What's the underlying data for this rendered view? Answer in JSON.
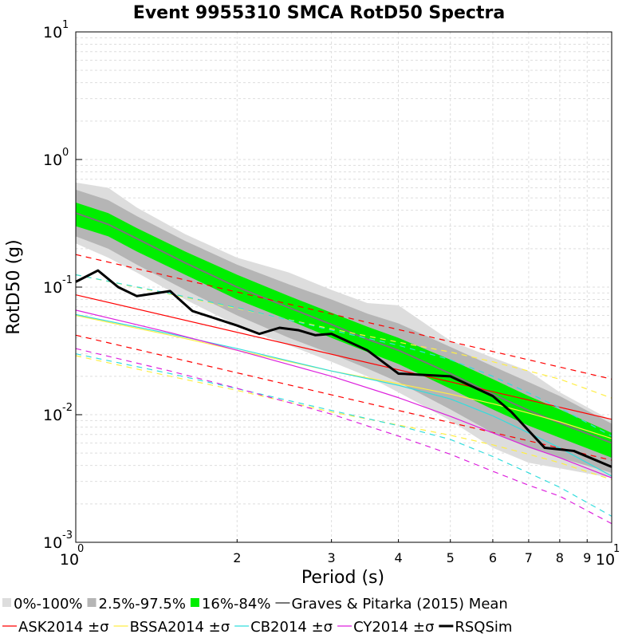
{
  "chart_data": {
    "type": "line",
    "title": "Event 9955310 SMCA RotD50 Spectra",
    "xlabel": "Period (s)",
    "ylabel": "RotD50 (g)",
    "xscale": "log",
    "yscale": "log",
    "xlim": [
      1,
      10
    ],
    "ylim": [
      0.001,
      10
    ],
    "grid": true,
    "legend_placement": "bottom",
    "x_ticks_major": [
      {
        "base": "10",
        "exp": "0",
        "value": 1
      },
      {
        "base": "10",
        "exp": "1",
        "value": 10
      }
    ],
    "x_ticks_minor": [
      {
        "label": "2",
        "value": 2
      },
      {
        "label": "3",
        "value": 3
      },
      {
        "label": "4",
        "value": 4
      },
      {
        "label": "5",
        "value": 5
      },
      {
        "label": "6",
        "value": 6
      },
      {
        "label": "7",
        "value": 7
      },
      {
        "label": "8",
        "value": 8
      },
      {
        "label": "9",
        "value": 9
      }
    ],
    "y_ticks": [
      {
        "base": "10",
        "exp": "-3",
        "value": 0.001
      },
      {
        "base": "10",
        "exp": "-2",
        "value": 0.01
      },
      {
        "base": "10",
        "exp": "-1",
        "value": 0.1
      },
      {
        "base": "10",
        "exp": "0",
        "value": 1
      },
      {
        "base": "10",
        "exp": "1",
        "value": 10
      }
    ],
    "bands": [
      {
        "name": "0%-100%",
        "color": "#dddddd",
        "x": [
          1,
          1.15,
          1.3,
          1.6,
          2,
          2.5,
          3,
          3.5,
          4,
          5,
          6,
          7,
          8,
          10
        ],
        "lower": [
          0.22,
          0.17,
          0.13,
          0.08,
          0.05,
          0.035,
          0.026,
          0.02,
          0.015,
          0.009,
          0.0055,
          0.0042,
          0.0038,
          0.0032
        ],
        "upper": [
          0.66,
          0.6,
          0.42,
          0.26,
          0.17,
          0.13,
          0.095,
          0.075,
          0.072,
          0.038,
          0.028,
          0.022,
          0.015,
          0.009
        ]
      },
      {
        "name": "2.5%-97.5%",
        "color": "#b5b5b5",
        "x": [
          1,
          1.15,
          1.3,
          1.6,
          2,
          2.5,
          3,
          3.5,
          4,
          5,
          6,
          7,
          8,
          10
        ],
        "lower": [
          0.25,
          0.2,
          0.15,
          0.095,
          0.06,
          0.04,
          0.03,
          0.023,
          0.018,
          0.011,
          0.0072,
          0.0055,
          0.0046,
          0.0035
        ],
        "upper": [
          0.58,
          0.48,
          0.36,
          0.23,
          0.15,
          0.105,
          0.08,
          0.062,
          0.052,
          0.034,
          0.024,
          0.018,
          0.014,
          0.0085
        ]
      },
      {
        "name": "16%-84%",
        "color": "#00ee00",
        "x": [
          1,
          1.15,
          1.3,
          1.6,
          2,
          2.5,
          3,
          3.5,
          4,
          5,
          6,
          7,
          8,
          10
        ],
        "lower": [
          0.3,
          0.25,
          0.19,
          0.125,
          0.08,
          0.055,
          0.04,
          0.031,
          0.025,
          0.016,
          0.011,
          0.0082,
          0.0066,
          0.0046
        ],
        "upper": [
          0.46,
          0.38,
          0.29,
          0.19,
          0.125,
          0.085,
          0.063,
          0.049,
          0.04,
          0.027,
          0.019,
          0.014,
          0.011,
          0.0072
        ]
      }
    ],
    "series": [
      {
        "name": "Graves & Pitarka (2015) Mean",
        "color": "#777777",
        "width": 2,
        "dash": false,
        "x": [
          1,
          1.15,
          1.3,
          1.6,
          2,
          2.5,
          3,
          3.5,
          4,
          5,
          6,
          7,
          8,
          10
        ],
        "y": [
          0.38,
          0.31,
          0.24,
          0.155,
          0.1,
          0.069,
          0.051,
          0.039,
          0.032,
          0.021,
          0.0145,
          0.0108,
          0.0086,
          0.006
        ]
      },
      {
        "name": "ASK2014 ±σ",
        "color": "#ff0000",
        "width": 1.2,
        "dash": false,
        "x": [
          1,
          10
        ],
        "y": [
          0.087,
          0.0092
        ]
      },
      {
        "name": "",
        "color": "#ff0000",
        "width": 1.2,
        "dash": true,
        "x": [
          1,
          10
        ],
        "y": [
          0.18,
          0.019
        ]
      },
      {
        "name": "",
        "color": "#ff0000",
        "width": 1.2,
        "dash": true,
        "x": [
          1,
          10
        ],
        "y": [
          0.042,
          0.0044
        ]
      },
      {
        "name": "BSSA2014 ±σ",
        "color": "#ffee44",
        "width": 1.2,
        "dash": false,
        "x": [
          1,
          1.5,
          2,
          3,
          4,
          5,
          6,
          7,
          8,
          10
        ],
        "y": [
          0.06,
          0.042,
          0.032,
          0.022,
          0.0175,
          0.0145,
          0.0122,
          0.0103,
          0.0088,
          0.0065
        ]
      },
      {
        "name": "",
        "color": "#ffee44",
        "width": 1.2,
        "dash": true,
        "x": [
          1,
          1.5,
          2,
          3,
          4,
          5,
          6,
          7,
          8,
          10
        ],
        "y": [
          0.125,
          0.088,
          0.068,
          0.047,
          0.037,
          0.031,
          0.026,
          0.022,
          0.019,
          0.0135
        ]
      },
      {
        "name": "",
        "color": "#ffee44",
        "width": 1.2,
        "dash": true,
        "x": [
          1,
          1.5,
          2,
          3,
          4,
          5,
          6,
          7,
          8,
          10
        ],
        "y": [
          0.029,
          0.02,
          0.0155,
          0.0105,
          0.0083,
          0.0069,
          0.0058,
          0.0049,
          0.0042,
          0.0031
        ]
      },
      {
        "name": "CB2014 ±σ",
        "color": "#33dddd",
        "width": 1.2,
        "dash": false,
        "x": [
          1,
          1.5,
          2,
          3,
          4,
          5,
          6,
          7,
          8,
          10
        ],
        "y": [
          0.061,
          0.043,
          0.033,
          0.022,
          0.017,
          0.0133,
          0.0098,
          0.0072,
          0.0055,
          0.0033
        ]
      },
      {
        "name": "",
        "color": "#33dddd",
        "width": 1.2,
        "dash": true,
        "x": [
          1,
          1.5,
          2,
          3,
          4,
          5,
          6,
          7,
          8,
          10
        ],
        "y": [
          0.125,
          0.089,
          0.069,
          0.046,
          0.035,
          0.027,
          0.02,
          0.0148,
          0.0113,
          0.0068
        ]
      },
      {
        "name": "",
        "color": "#33dddd",
        "width": 1.2,
        "dash": true,
        "x": [
          1,
          1.5,
          2,
          3,
          4,
          5,
          6,
          7,
          8,
          10
        ],
        "y": [
          0.03,
          0.021,
          0.016,
          0.0108,
          0.0082,
          0.0064,
          0.0047,
          0.0035,
          0.0027,
          0.0016
        ]
      },
      {
        "name": "CY2014 ±σ",
        "color": "#dd22dd",
        "width": 1.2,
        "dash": false,
        "x": [
          1,
          1.5,
          2,
          3,
          4,
          5,
          6,
          7,
          8,
          10
        ],
        "y": [
          0.066,
          0.044,
          0.032,
          0.02,
          0.0136,
          0.0097,
          0.0072,
          0.0056,
          0.0046,
          0.0032
        ]
      },
      {
        "name": "",
        "color": "#dd22dd",
        "width": 1.2,
        "dash": true,
        "x": [
          1,
          1.5,
          2,
          3,
          4,
          5,
          6,
          7,
          8,
          10
        ],
        "y": [
          0.033,
          0.022,
          0.0161,
          0.0101,
          0.0068,
          0.0049,
          0.0036,
          0.0028,
          0.0023,
          0.0014
        ]
      },
      {
        "name": "RSQSim",
        "color": "#000000",
        "width": 3,
        "dash": false,
        "x": [
          1,
          1.1,
          1.2,
          1.3,
          1.5,
          1.65,
          2,
          2.2,
          2.4,
          2.6,
          2.8,
          3,
          3.5,
          4,
          5,
          6,
          6.5,
          7,
          7.5,
          8.5,
          10
        ],
        "y": [
          0.11,
          0.135,
          0.1,
          0.085,
          0.093,
          0.065,
          0.05,
          0.043,
          0.048,
          0.046,
          0.042,
          0.043,
          0.032,
          0.021,
          0.02,
          0.014,
          0.0105,
          0.0075,
          0.0055,
          0.0052,
          0.0039
        ]
      }
    ],
    "legend": [
      {
        "label": "0%-100%",
        "kind": "patch",
        "color": "#dddddd"
      },
      {
        "label": "2.5%-97.5%",
        "kind": "patch",
        "color": "#b5b5b5"
      },
      {
        "label": "16%-84%",
        "kind": "patch",
        "color": "#00ee00"
      },
      {
        "label": "Graves & Pitarka (2015) Mean",
        "kind": "line",
        "color": "#777777",
        "width": 2
      },
      {
        "label": "ASK2014 ±σ",
        "kind": "line",
        "color": "#ff0000",
        "width": 1.2
      },
      {
        "label": "BSSA2014 ±σ",
        "kind": "line",
        "color": "#ffee44",
        "width": 1.2
      },
      {
        "label": "CB2014 ±σ",
        "kind": "line",
        "color": "#33dddd",
        "width": 1.2
      },
      {
        "label": "CY2014 ±σ",
        "kind": "line",
        "color": "#dd22dd",
        "width": 1.2
      },
      {
        "label": "RSQSim",
        "kind": "line",
        "color": "#000000",
        "width": 3
      }
    ]
  }
}
